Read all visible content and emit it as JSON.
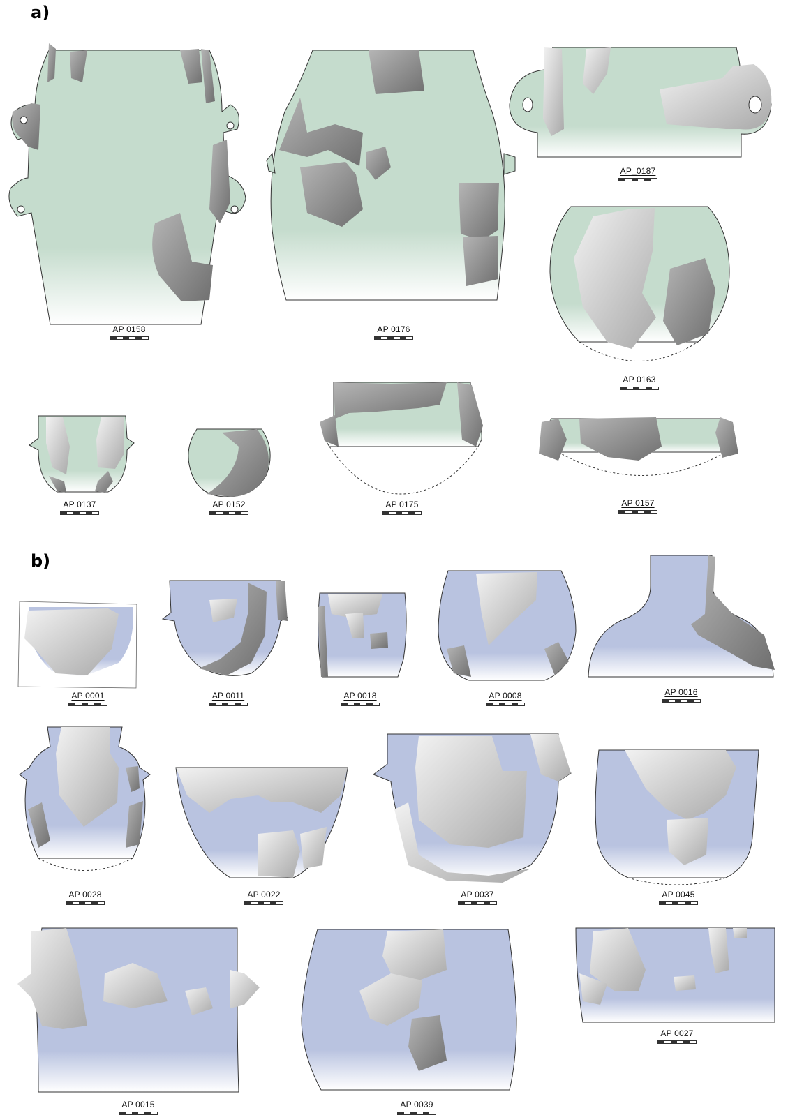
{
  "panels": {
    "a": {
      "label": "a)",
      "fill_color": "#c5dccd"
    },
    "b": {
      "label": "b)",
      "fill_color": "#b9c3e0"
    }
  },
  "fragment_color": "#8e8e8e",
  "vessels_a": [
    {
      "id": "AP 0158"
    },
    {
      "id": "AP 0176"
    },
    {
      "id": "AP_0187"
    },
    {
      "id": "AP 0163"
    },
    {
      "id": "AP 0137"
    },
    {
      "id": "AP 0152"
    },
    {
      "id": "AP 0175"
    },
    {
      "id": "AP 0157"
    }
  ],
  "vessels_b": [
    {
      "id": "AP 0001"
    },
    {
      "id": "AP 0011"
    },
    {
      "id": "AP 0018"
    },
    {
      "id": "AP 0008"
    },
    {
      "id": "AP 0016"
    },
    {
      "id": "AP 0028"
    },
    {
      "id": "AP 0022"
    },
    {
      "id": "AP 0037"
    },
    {
      "id": "AP 0045"
    },
    {
      "id": "AP 0015"
    },
    {
      "id": "AP 0039"
    },
    {
      "id": "AP 0027"
    }
  ]
}
